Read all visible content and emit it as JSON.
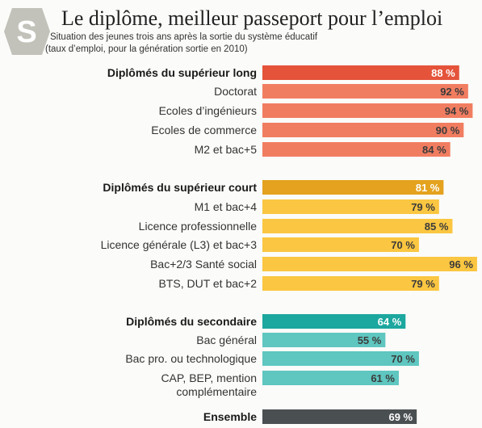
{
  "logo_text": "S",
  "title": "Le diplôme, meilleur passeport pour l’emploi",
  "subtitle_line1": "Situation des jeunes trois ans après la sortie du système éducatif",
  "subtitle_line2": "(taux d’emploi, pour la génération sortie en 2010)",
  "colors": {
    "logo": "#c2c2ba",
    "superieur_long_header": "#e4533a",
    "superieur_long": "#f17d61",
    "superieur_court_header": "#e4a21e",
    "superieur_court": "#fbc641",
    "secondaire_header": "#1ca79f",
    "secondaire": "#5fc6c0",
    "ensemble": "#4a4f52"
  },
  "chart_data": {
    "type": "bar",
    "orientation": "horizontal",
    "value_format": "{v} %",
    "rows": [
      {
        "label": "Diplômés du supérieur long",
        "value": 88,
        "kind": "header",
        "group": "superieur_long"
      },
      {
        "label": "Doctorat",
        "value": 92,
        "kind": "item",
        "group": "superieur_long"
      },
      {
        "label": "Ecoles d’ingénieurs",
        "value": 94,
        "kind": "item",
        "group": "superieur_long"
      },
      {
        "label": "Ecoles de commerce",
        "value": 90,
        "kind": "item",
        "group": "superieur_long"
      },
      {
        "label": "M2 et bac+5",
        "value": 84,
        "kind": "item",
        "group": "superieur_long"
      },
      {
        "label": "Diplômés du supérieur court",
        "value": 81,
        "kind": "header",
        "group": "superieur_court"
      },
      {
        "label": "M1 et bac+4",
        "value": 79,
        "kind": "item",
        "group": "superieur_court"
      },
      {
        "label": "Licence professionnelle",
        "value": 85,
        "kind": "item",
        "group": "superieur_court"
      },
      {
        "label": "Licence générale (L3) et bac+3",
        "value": 70,
        "kind": "item",
        "group": "superieur_court"
      },
      {
        "label": "Bac+2/3 Santé social",
        "value": 96,
        "kind": "item",
        "group": "superieur_court"
      },
      {
        "label": "BTS, DUT et bac+2",
        "value": 79,
        "kind": "item",
        "group": "superieur_court"
      },
      {
        "label": "Diplômés du secondaire",
        "value": 64,
        "kind": "header",
        "group": "secondaire"
      },
      {
        "label": "Bac général",
        "value": 55,
        "kind": "item",
        "group": "secondaire"
      },
      {
        "label": "Bac pro. ou technologique",
        "value": 70,
        "kind": "item",
        "group": "secondaire"
      },
      {
        "label": "CAP, BEP, mention complémentaire",
        "label_lines": [
          "CAP, BEP, mention",
          "complémentaire"
        ],
        "value": 61,
        "kind": "item",
        "group": "secondaire"
      },
      {
        "label": "Ensemble",
        "value": 69,
        "kind": "header",
        "group": "ensemble"
      }
    ]
  }
}
